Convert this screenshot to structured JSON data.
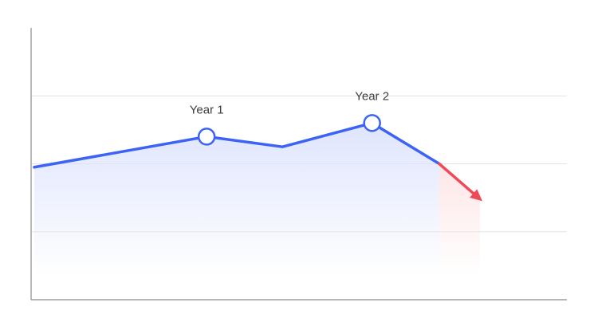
{
  "chart_data": {
    "type": "line",
    "title": "",
    "xlabel": "",
    "ylabel": "",
    "x": [
      0,
      1,
      1.44,
      1.96,
      2.35,
      2.6
    ],
    "ylim": [
      0,
      4
    ],
    "grid": true,
    "series": [
      {
        "values": [
          1.95,
          2.4,
          2.25,
          2.6,
          2.0,
          1.45
        ],
        "trend_start_index": 4
      }
    ],
    "annotations": [
      {
        "text": "Year 1",
        "index": 1
      },
      {
        "text": "Year 2",
        "index": 3
      }
    ],
    "colors": {
      "line": "#3d63f5",
      "trend": "#ef4a5a",
      "area": "#dbe2fd",
      "trend_area": "#fde3e3",
      "grid": "#e3e3e3",
      "axis": "#8c8c8c"
    }
  }
}
